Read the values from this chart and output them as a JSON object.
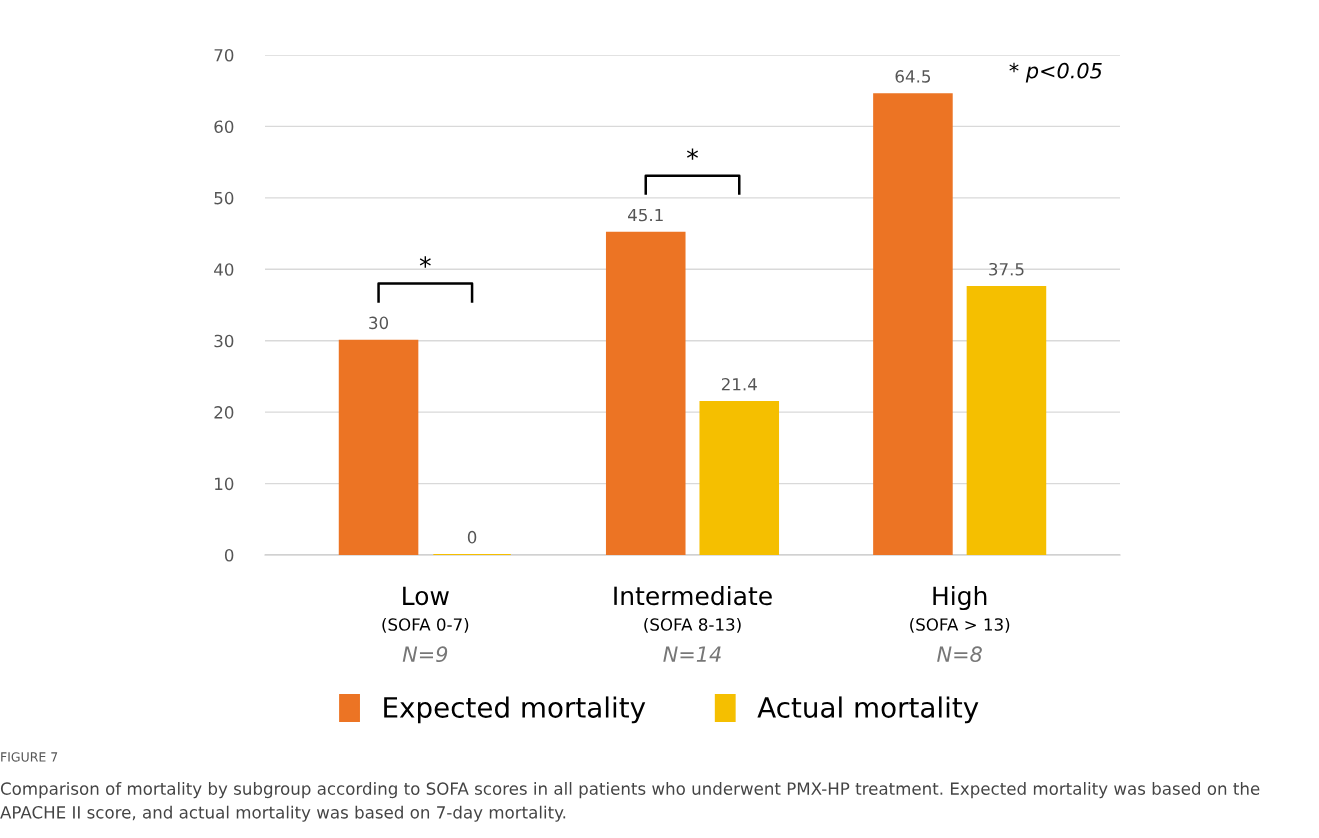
{
  "chart_data": {
    "type": "bar",
    "categories": [
      "Low\n(SOFA 0-7)\nN=9",
      "Intermediate\n(SOFA 8-13)\nN=14",
      "High\n(SOFA > 13)\nN=8"
    ],
    "series": [
      {
        "name": "Expected mortality",
        "color": "#ec7424",
        "values": [
          30,
          45.1,
          64.5
        ]
      },
      {
        "name": "Actual mortality",
        "color": "#f5bf00",
        "values": [
          0,
          21.4,
          37.5
        ]
      }
    ],
    "data_labels": true,
    "ylim": [
      0,
      70
    ],
    "yticks": [
      0,
      10,
      20,
      30,
      40,
      50,
      60,
      70
    ],
    "grid": "y",
    "legend": "bottom",
    "annotations": [
      "* p<0.05",
      "FIGURE 7",
      "Comparison of mortality by subgroup according to SOFA scores in all patients who underwent PMX-HP treatment. Expected mortality was based on the APACHE II score, and actual mortality was based on 7-day mortality.",
      "*",
      "*"
    ]
  }
}
